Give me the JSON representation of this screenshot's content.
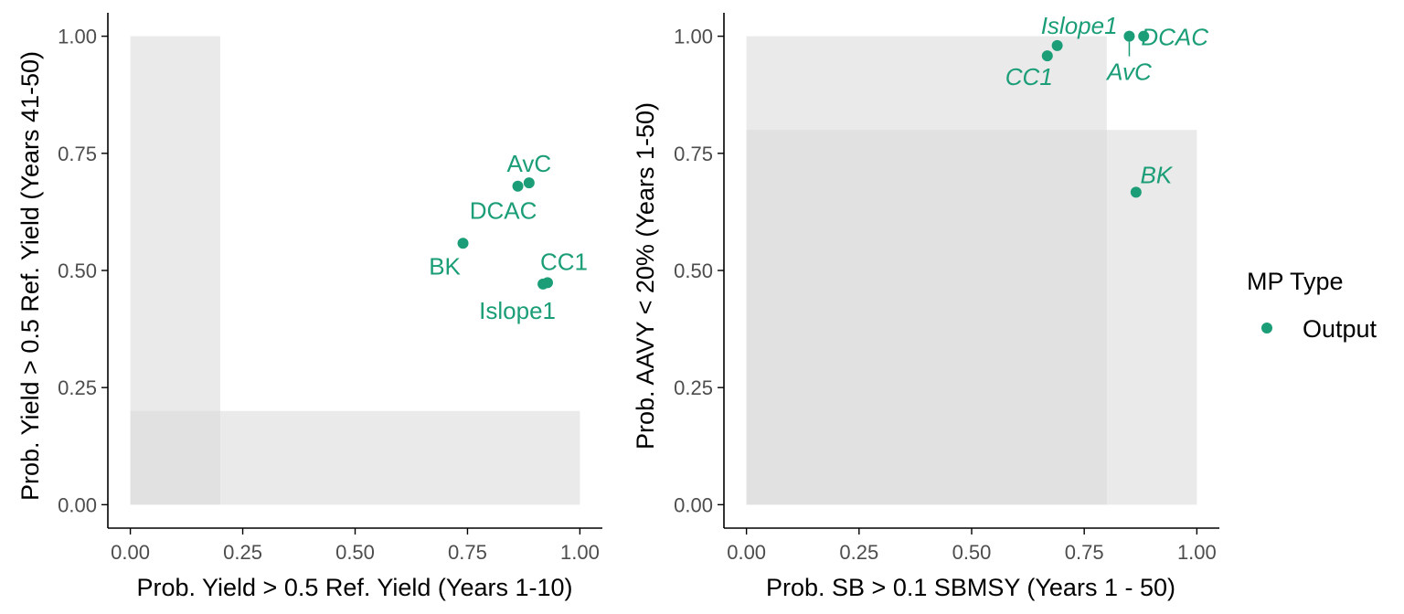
{
  "colors": {
    "point": "#1b9e77",
    "zone": "#d9d9d9",
    "axis": "#000000",
    "tick_text": "#4d4d4d"
  },
  "legend": {
    "title": "MP Type",
    "entries": [
      "Output"
    ]
  },
  "chart_data": [
    {
      "type": "scatter",
      "xlabel": "Prob. Yield > 0.5 Ref. Yield (Years 1-10)",
      "ylabel": "Prob. Yield > 0.5 Ref. Yield (Years 41-50)",
      "xlim": [
        -0.05,
        1.05
      ],
      "ylim": [
        -0.05,
        1.05
      ],
      "xticks": [
        "0.00",
        "0.25",
        "0.50",
        "0.75",
        "1.00"
      ],
      "yticks": [
        "0.00",
        "0.25",
        "0.50",
        "0.75",
        "1.00"
      ],
      "grid": false,
      "label_style": "normal",
      "zones": [
        {
          "x0": 0,
          "x1": 0.2,
          "y0": 0,
          "y1": 1
        },
        {
          "x0": 0,
          "x1": 1,
          "y0": 0,
          "y1": 0.2
        }
      ],
      "points": [
        {
          "label": "AvC",
          "x": 0.887,
          "y": 0.687,
          "series": "Output"
        },
        {
          "label": "DCAC",
          "x": 0.862,
          "y": 0.68,
          "series": "Output"
        },
        {
          "label": "BK",
          "x": 0.74,
          "y": 0.558,
          "series": "Output"
        },
        {
          "label": "CC1",
          "x": 0.928,
          "y": 0.474,
          "series": "Output"
        },
        {
          "label": "Islope1",
          "x": 0.918,
          "y": 0.471,
          "series": "Output"
        }
      ]
    },
    {
      "type": "scatter",
      "xlabel": "Prob. SB > 0.1 SBMSY (Years 1 - 50)",
      "ylabel": "Prob. AAVY < 20% (Years 1-50)",
      "xlim": [
        -0.05,
        1.05
      ],
      "ylim": [
        -0.05,
        1.05
      ],
      "xticks": [
        "0.00",
        "0.25",
        "0.50",
        "0.75",
        "1.00"
      ],
      "yticks": [
        "0.00",
        "0.25",
        "0.50",
        "0.75",
        "1.00"
      ],
      "grid": false,
      "label_style": "italic",
      "zones": [
        {
          "x0": 0,
          "x1": 0.8,
          "y0": 0,
          "y1": 1
        },
        {
          "x0": 0,
          "x1": 1,
          "y0": 0,
          "y1": 0.8
        }
      ],
      "points": [
        {
          "label": "Islope1",
          "x": 0.69,
          "y": 0.98,
          "series": "Output"
        },
        {
          "label": "CC1",
          "x": 0.668,
          "y": 0.958,
          "series": "Output"
        },
        {
          "label": "DCAC",
          "x": 0.882,
          "y": 1.0,
          "series": "Output"
        },
        {
          "label": "AvC",
          "x": 0.85,
          "y": 1.0,
          "series": "Output"
        },
        {
          "label": "BK",
          "x": 0.865,
          "y": 0.667,
          "series": "Output"
        }
      ]
    }
  ]
}
